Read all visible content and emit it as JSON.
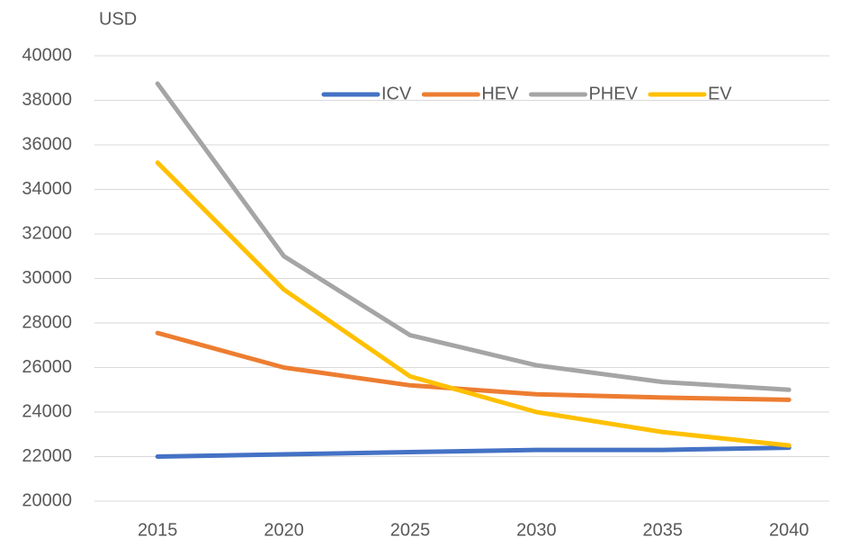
{
  "chart_data": {
    "type": "line",
    "y_label": "USD",
    "categories": [
      "2015",
      "2020",
      "2025",
      "2030",
      "2035",
      "2040"
    ],
    "series": [
      {
        "name": "ICV",
        "color": "#4472c4",
        "values": [
          22000,
          22100,
          22200,
          22300,
          22300,
          22400
        ]
      },
      {
        "name": "HEV",
        "color": "#ed7d31",
        "values": [
          27550,
          26000,
          25200,
          24800,
          24650,
          24550
        ]
      },
      {
        "name": "PHEV",
        "color": "#a5a5a5",
        "values": [
          38750,
          31000,
          27450,
          26100,
          25350,
          25000
        ]
      },
      {
        "name": "EV",
        "color": "#ffc000",
        "values": [
          35200,
          29500,
          25600,
          24000,
          23100,
          22500
        ]
      }
    ],
    "ylim": [
      20000,
      40000
    ],
    "yticks": [
      20000,
      22000,
      24000,
      26000,
      28000,
      30000,
      32000,
      34000,
      36000,
      38000,
      40000
    ],
    "grid": true,
    "legend": "top"
  }
}
